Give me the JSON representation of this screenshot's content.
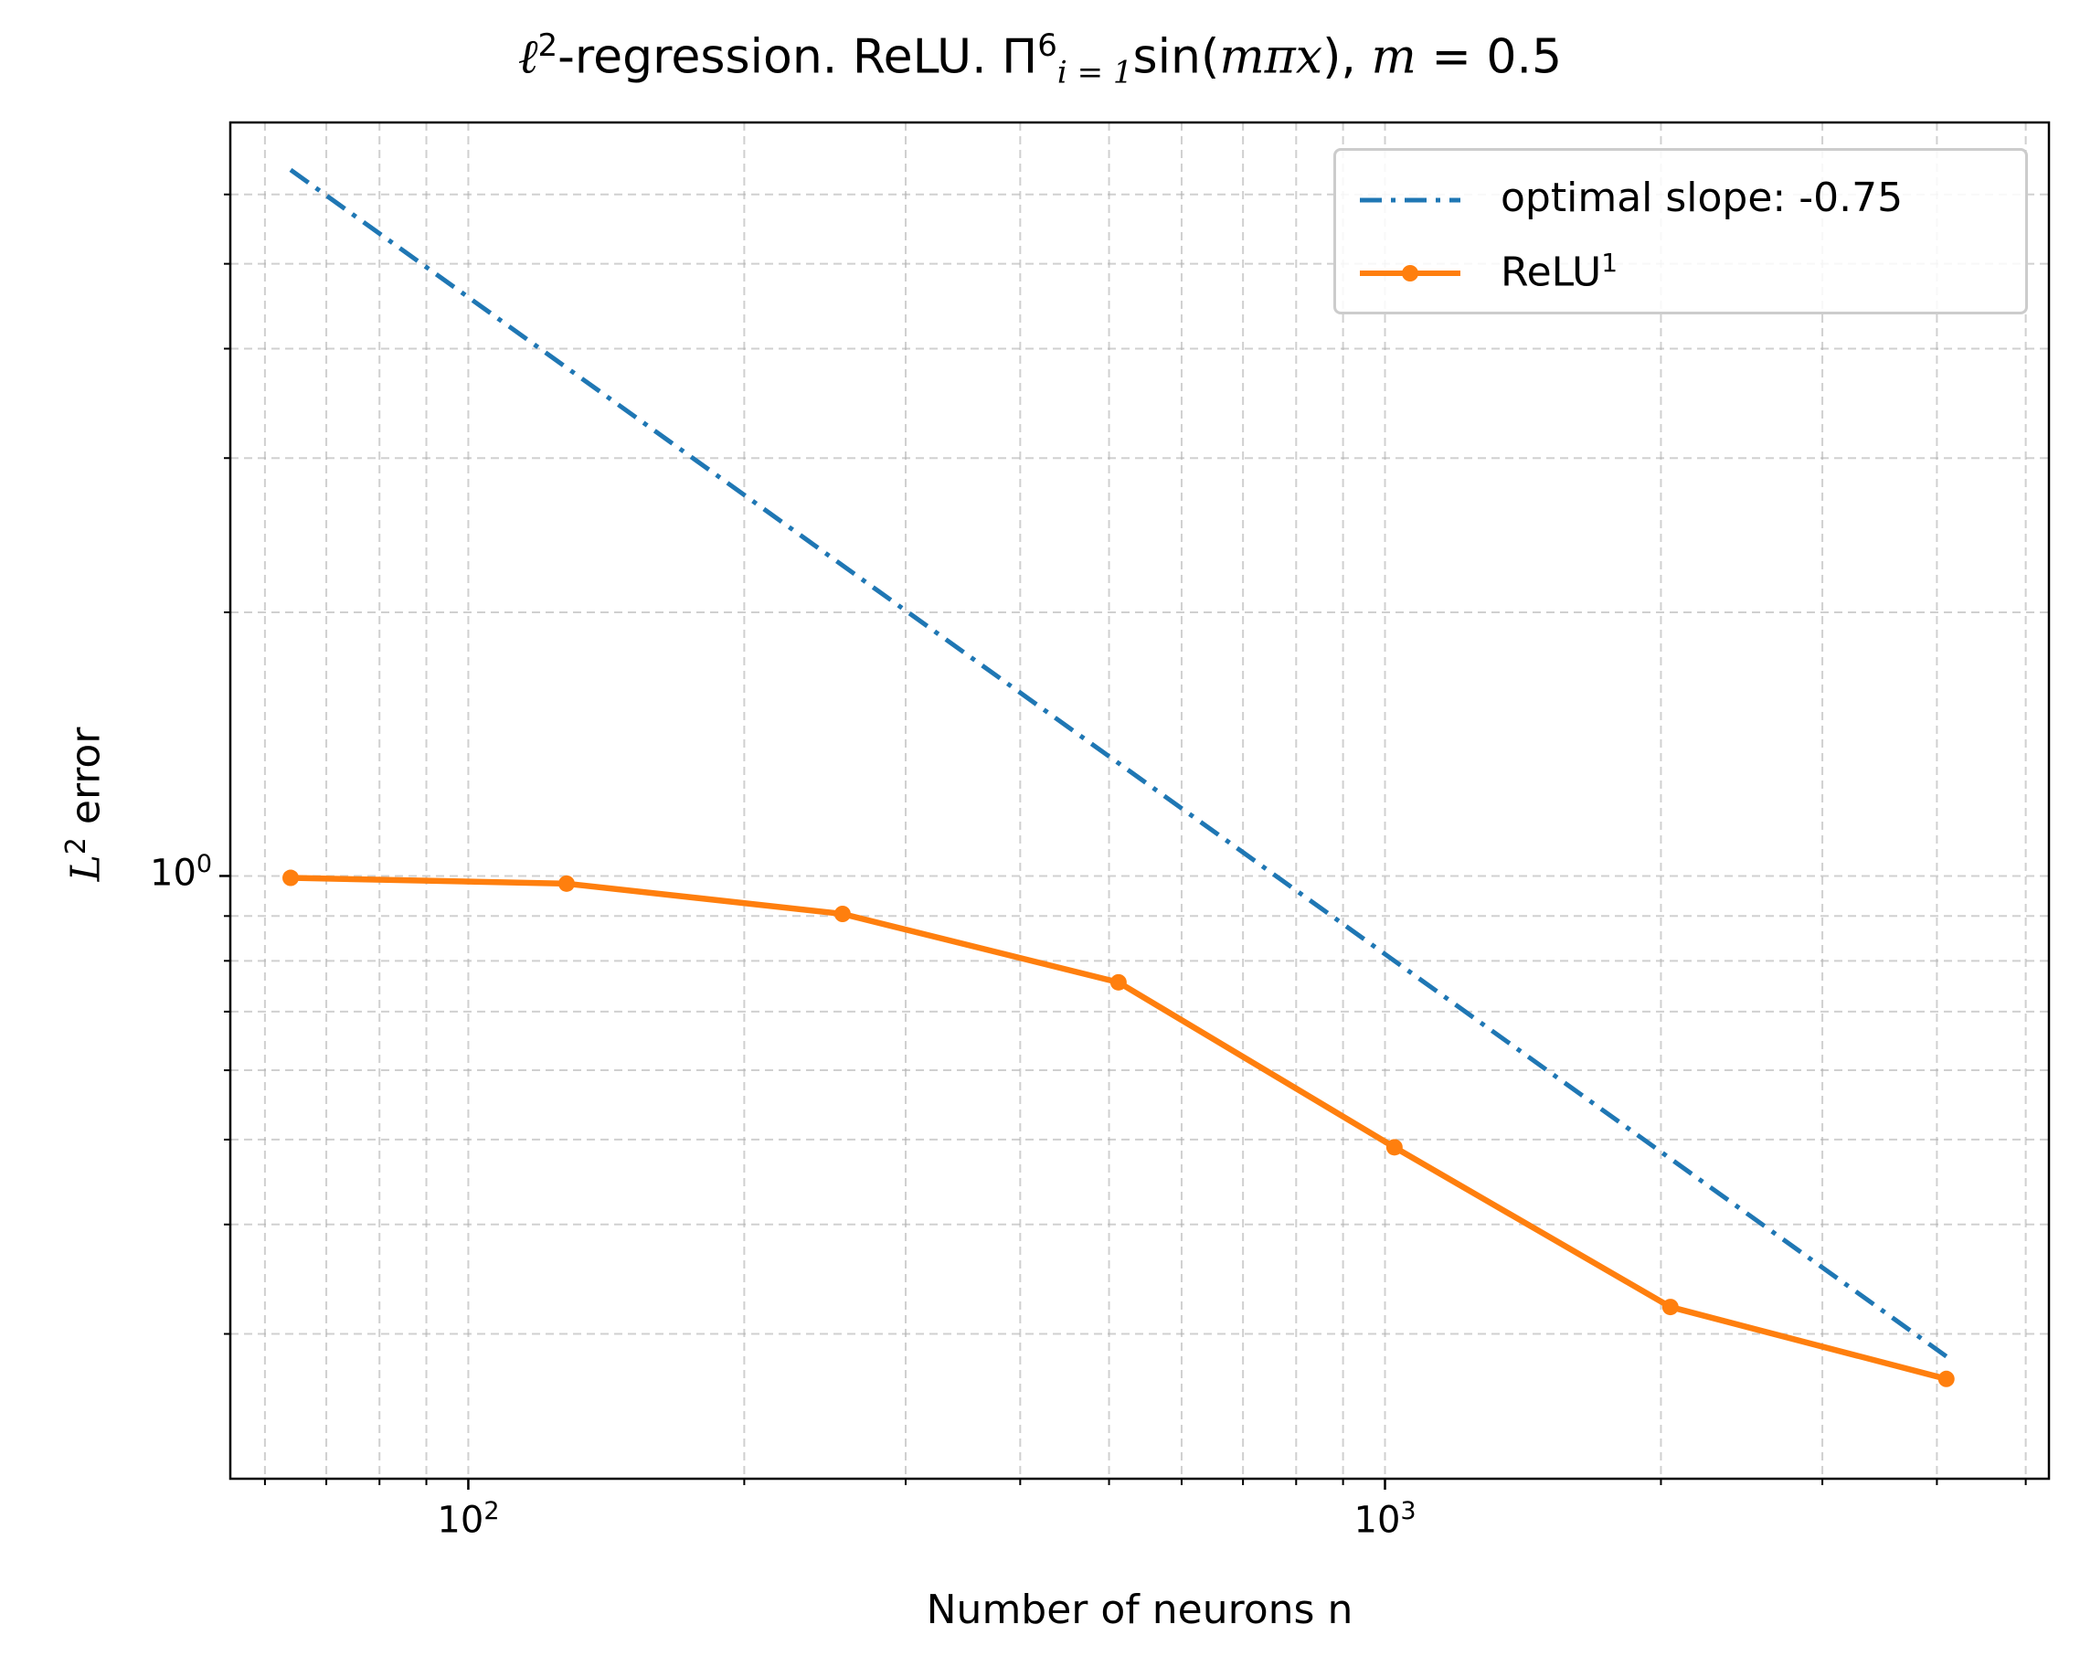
{
  "chart_data": {
    "type": "line",
    "title": "ℓ²-regression. ReLU. Π⁶ᵢ₌₁sin(mπx), m = 0.5",
    "title_parts": {
      "ell": "ℓ",
      "ell_sup": "2",
      "mid": "-regression. ReLU. ",
      "prod": "Π",
      "prod_sup": "6",
      "prod_sub": "i = 1",
      "sin": "sin(",
      "arg": "mπx",
      "close": "), ",
      "m": "m",
      "eq": " = 0.5"
    },
    "xlabel": "Number of neurons n",
    "ylabel_parts": {
      "L": "L",
      "sup": "2",
      "rest": " error"
    },
    "xscale": "log",
    "yscale": "log",
    "xlim": [
      55,
      5300
    ],
    "ylim": [
      0.205,
      7.25
    ],
    "grid": true,
    "x_major_ticks": [
      {
        "value": 100,
        "base": "10",
        "exp": "2"
      },
      {
        "value": 1000,
        "base": "10",
        "exp": "3"
      }
    ],
    "y_major_ticks": [
      {
        "value": 1,
        "base": "10",
        "exp": "0"
      }
    ],
    "x_minor_ticks": [
      60,
      70,
      80,
      90,
      200,
      300,
      400,
      500,
      600,
      700,
      800,
      900,
      2000,
      3000,
      4000,
      5000
    ],
    "y_minor_ticks": [
      0.3,
      0.4,
      0.5,
      0.6,
      0.7,
      0.8,
      0.9,
      2,
      3,
      4,
      5,
      6
    ],
    "legend_position": "upper right",
    "series": [
      {
        "name": "optimal slope: -0.75",
        "label_text": "optimal slope: -0.75",
        "style": "dashdot",
        "color": "#1f77b4",
        "x": [
          64,
          4096
        ],
        "y": [
          6.4,
          0.2828
        ]
      },
      {
        "name": "ReLU1",
        "label_base": "ReLU",
        "label_sup": "1",
        "style": "solid-marker",
        "color": "#ff7f0e",
        "x": [
          64,
          128,
          256,
          512,
          1024,
          2048,
          4096
        ],
        "y": [
          0.995,
          0.98,
          0.905,
          0.756,
          0.49,
          0.322,
          0.2665
        ]
      }
    ]
  }
}
